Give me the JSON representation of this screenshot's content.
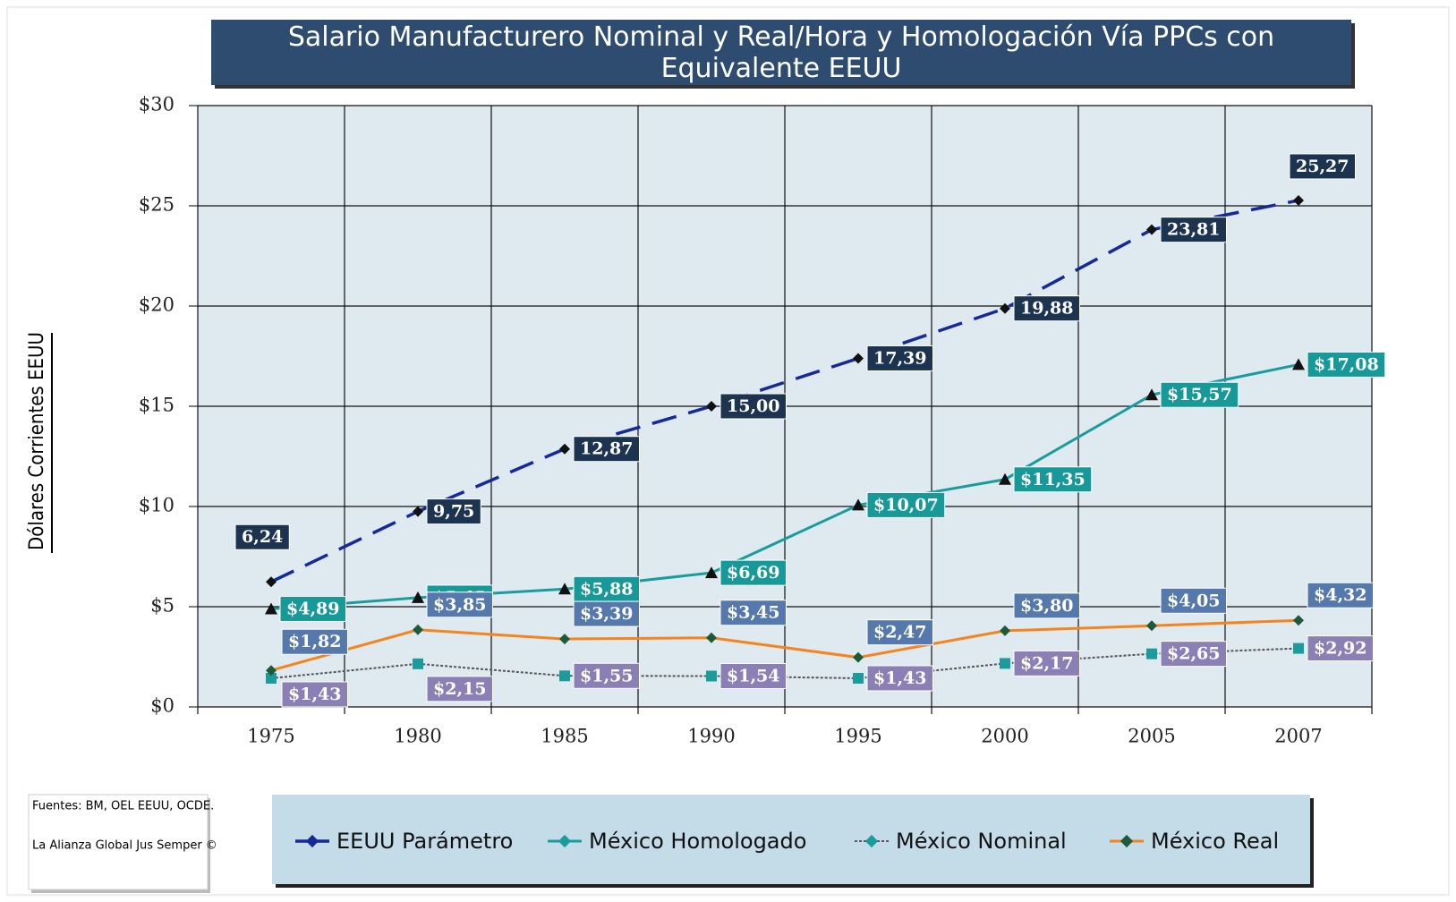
{
  "chart_data": {
    "type": "line",
    "title": "Salario Manufacturero Nominal y Real/Hora y Homologación Vía PPCs con Equivalente EEUU",
    "y_label": "Dólares Corrientes EEUU",
    "categories": [
      "1975",
      "1980",
      "1985",
      "1990",
      "1995",
      "2000",
      "2005",
      "2007"
    ],
    "series": [
      {
        "name": "EEUU Parámetro",
        "color": "#16299a",
        "label_color": "#1c3450",
        "values": [
          6.24,
          9.75,
          12.87,
          15.0,
          17.39,
          19.88,
          23.81,
          25.27
        ],
        "value_labels": [
          "6,24",
          "9,75",
          "12,87",
          "15,00",
          "17,39",
          "19,88",
          "23,81",
          "25,27"
        ]
      },
      {
        "name": "México Homologado",
        "color": "#1a9c9c",
        "label_color": "#17999a",
        "values": [
          4.89,
          5.45,
          5.88,
          6.69,
          10.07,
          11.35,
          15.57,
          17.08
        ],
        "value_labels": [
          "$4,89",
          "$5,45",
          "$5,88",
          "$6,69",
          "$10,07",
          "$11,35",
          "$15,57",
          "$17,08"
        ]
      },
      {
        "name": "México Nominal",
        "color": "#555555",
        "label_color": "#8b80b6",
        "values": [
          1.43,
          2.15,
          1.55,
          1.54,
          1.43,
          2.17,
          2.65,
          2.92
        ],
        "value_labels": [
          "$1,43",
          "$2,15",
          "$1,55",
          "$1,54",
          "$1,43",
          "$2,17",
          "$2,65",
          "$2,92"
        ]
      },
      {
        "name": "México Real",
        "color": "#f5841f",
        "label_color": "#5579ad",
        "values": [
          1.82,
          3.85,
          3.39,
          3.45,
          2.47,
          3.8,
          4.05,
          4.32
        ],
        "value_labels": [
          "$1,82",
          "$3,85",
          "$3,39",
          "$3,45",
          "$2,47",
          "$3,80",
          "$4,05",
          "$4,32"
        ]
      }
    ],
    "ylim": [
      0,
      30
    ],
    "yticks": [
      {
        "value": 0,
        "label": "$0"
      },
      {
        "value": 5,
        "label": "$5"
      },
      {
        "value": 10,
        "label": "$10"
      },
      {
        "value": 15,
        "label": "$15"
      },
      {
        "value": 20,
        "label": "$20"
      },
      {
        "value": 25,
        "label": "$25"
      },
      {
        "value": 30,
        "label": "$30"
      }
    ],
    "grid": true,
    "notes": [
      "Fuentes: BM, OEL EEUU, OCDE.",
      "La Alianza Global Jus Semper ©"
    ]
  }
}
